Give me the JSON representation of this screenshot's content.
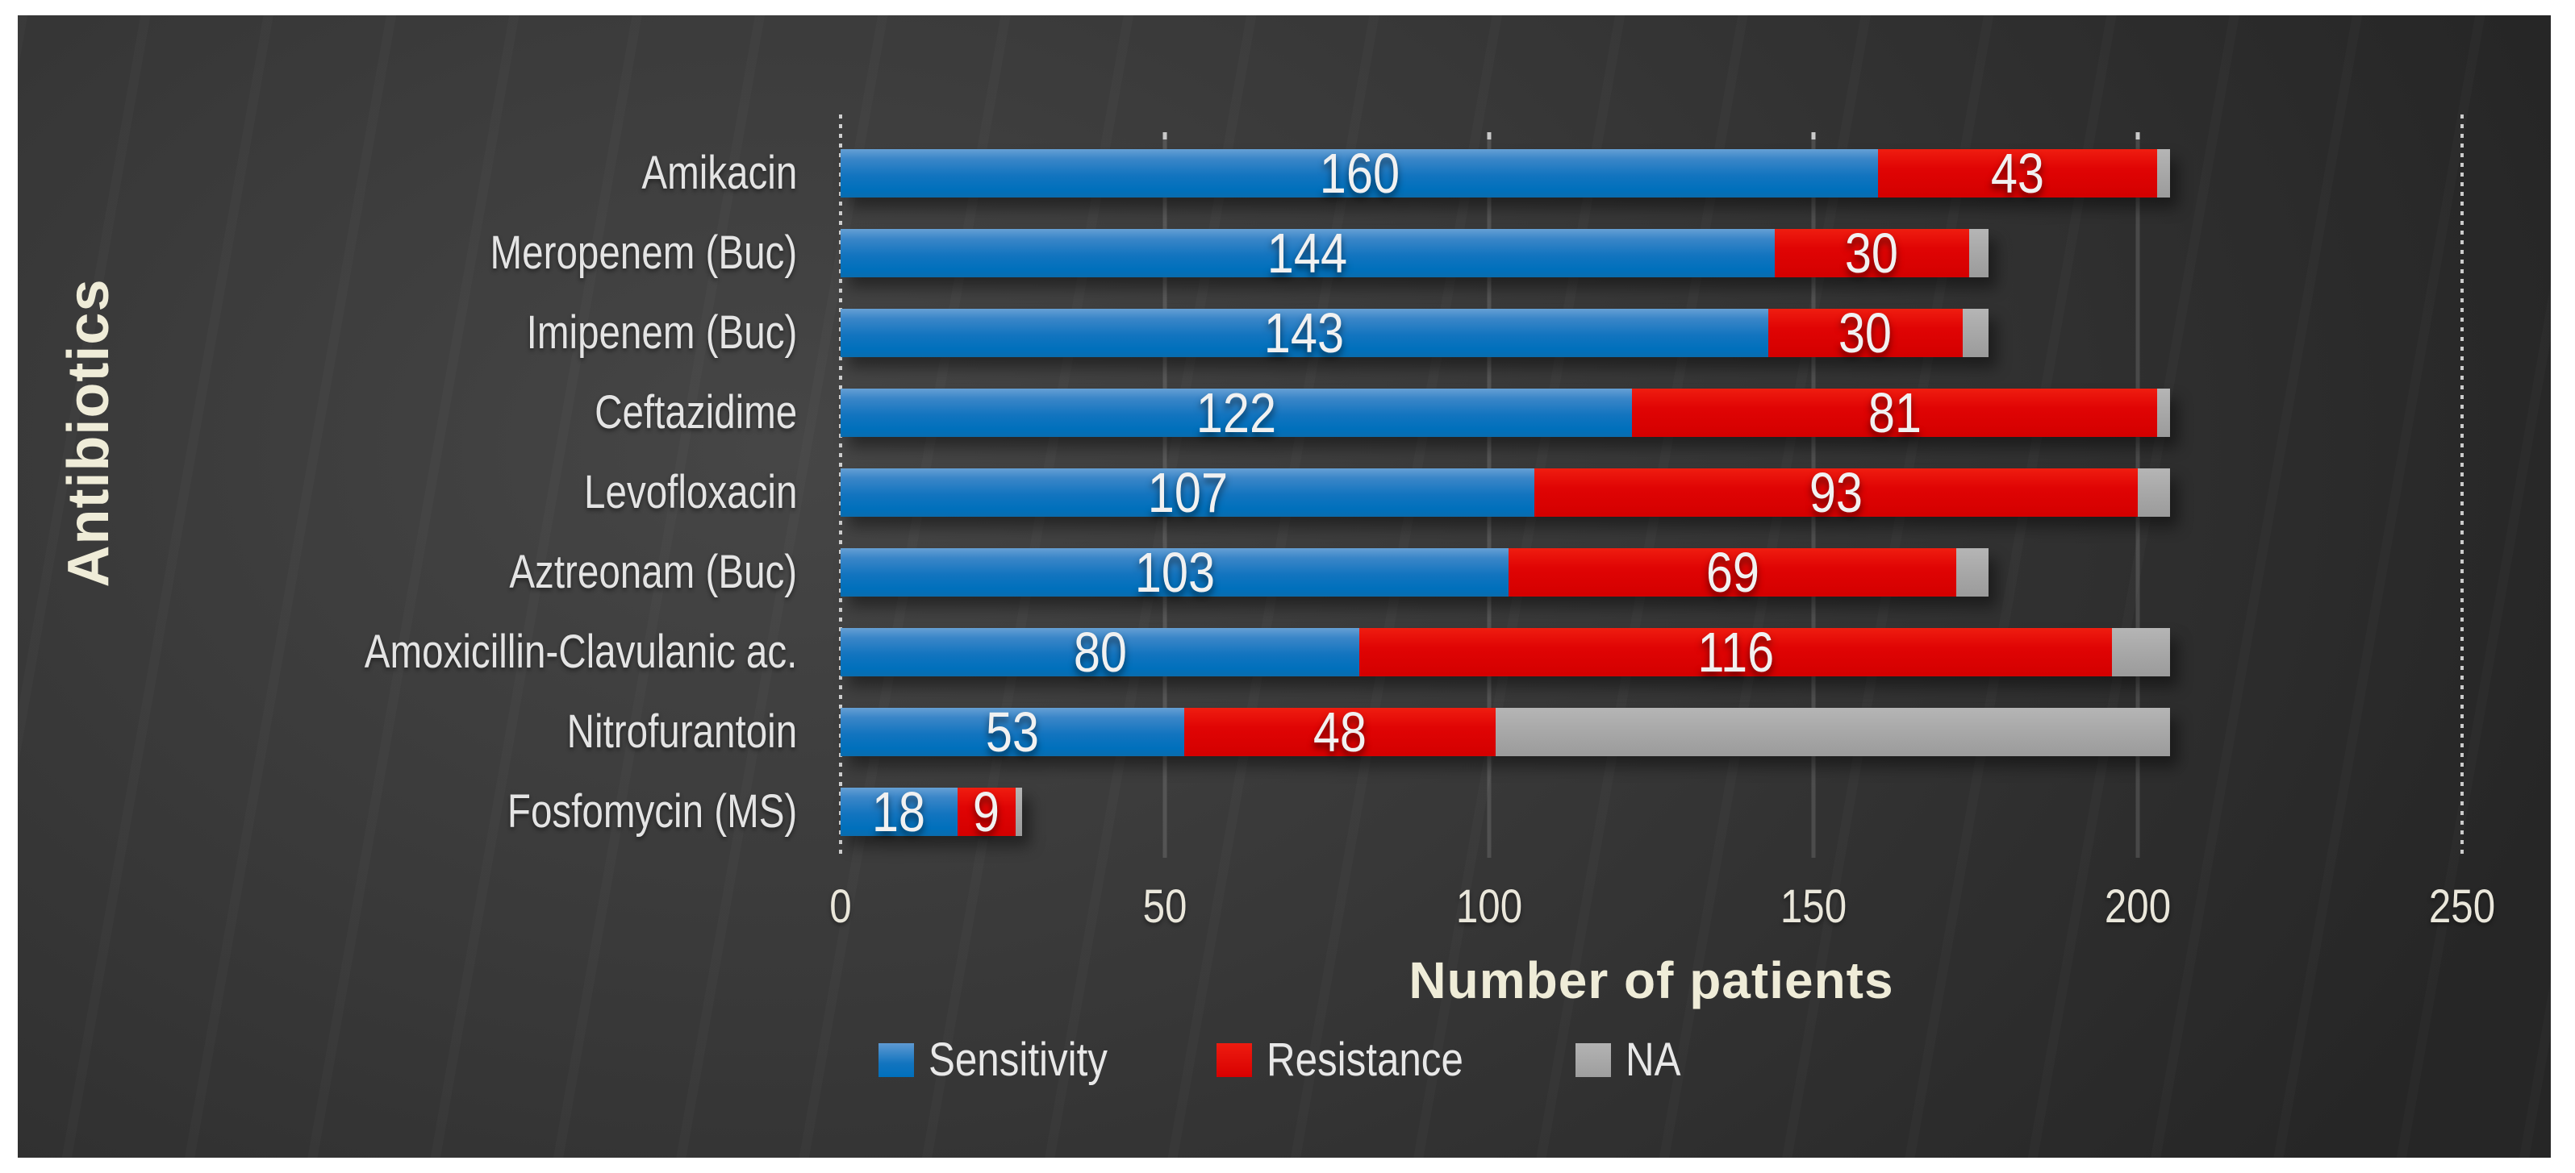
{
  "chart_data": {
    "type": "bar",
    "orientation": "horizontal",
    "stacked": true,
    "xlabel": "Number of patients",
    "ylabel": "Antibiotics",
    "xlim": [
      0,
      250
    ],
    "x_ticks": [
      "0",
      "50",
      "100",
      "150",
      "200",
      "250"
    ],
    "grid": "vertical-faint",
    "legend_position": "bottom",
    "categories": [
      "Amikacin",
      "Meropenem (Buc)",
      "Imipenem (Buc)",
      "Ceftazidime",
      "Levofloxacin",
      "Aztreonam (Buc)",
      "Amoxicillin-Clavulanic ac.",
      "Nitrofurantoin",
      "Fosfomycin (MS)"
    ],
    "series": [
      {
        "name": "Sensitivity",
        "color": "#1274bf",
        "values": [
          160,
          144,
          143,
          122,
          107,
          103,
          80,
          53,
          18
        ],
        "data_labels_shown": true
      },
      {
        "name": "Resistance",
        "color": "#e00404",
        "values": [
          43,
          30,
          30,
          81,
          93,
          69,
          116,
          48,
          9
        ],
        "data_labels_shown": true
      },
      {
        "name": "NA",
        "color": "#a6a6a6",
        "values": [
          2,
          3,
          4,
          2,
          5,
          5,
          9,
          104,
          1
        ],
        "data_labels_shown": false
      }
    ],
    "totals_note_colors": {
      "background": "#383838",
      "axis_title_text": "#efecd8",
      "tick_text": "#eae7db",
      "category_text": "#e4e4e4",
      "data_label_text": "#f1f1f1"
    }
  }
}
